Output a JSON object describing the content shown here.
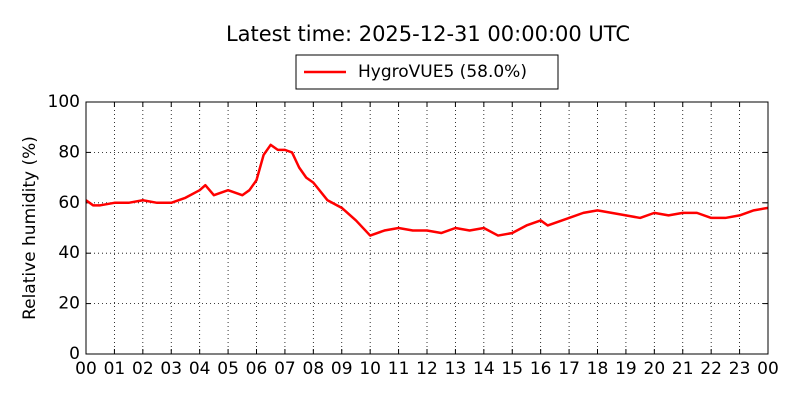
{
  "chart_data": {
    "type": "line",
    "title": "Latest time: 2025-12-31 00:00:00 UTC",
    "y_label": "Relative humidity (%)",
    "x": [
      0,
      0.25,
      0.5,
      1,
      1.5,
      2,
      2.5,
      3,
      3.5,
      4,
      4.2,
      4.5,
      5,
      5.5,
      5.75,
      6,
      6.25,
      6.5,
      6.75,
      7,
      7.25,
      7.5,
      7.75,
      8,
      8.5,
      9,
      9.5,
      10,
      10.5,
      11,
      11.5,
      12,
      12.5,
      13,
      13.5,
      14,
      14.5,
      15,
      15.5,
      16,
      16.25,
      16.5,
      17,
      17.5,
      18,
      18.5,
      19,
      19.5,
      20,
      20.5,
      21,
      21.5,
      22,
      22.5,
      23,
      23.5,
      24
    ],
    "series": [
      {
        "name": "HygroVUE5 (58.0%)",
        "color": "#ff0000",
        "values": [
          61,
          59,
          59,
          60,
          60,
          61,
          60,
          60,
          62,
          65,
          67,
          63,
          65,
          63,
          65,
          69,
          79,
          83,
          81,
          81,
          80,
          74,
          70,
          68,
          61,
          58,
          53,
          47,
          49,
          50,
          49,
          49,
          48,
          50,
          49,
          50,
          47,
          48,
          51,
          53,
          51,
          52,
          54,
          56,
          57,
          56,
          55,
          54,
          56,
          55,
          56,
          56,
          54,
          54,
          55,
          57,
          58
        ]
      }
    ],
    "xlim": [
      0,
      24
    ],
    "xticks": [
      {
        "value": 0,
        "label": "00"
      },
      {
        "value": 1,
        "label": "01"
      },
      {
        "value": 2,
        "label": "02"
      },
      {
        "value": 3,
        "label": "03"
      },
      {
        "value": 4,
        "label": "04"
      },
      {
        "value": 5,
        "label": "05"
      },
      {
        "value": 6,
        "label": "06"
      },
      {
        "value": 7,
        "label": "07"
      },
      {
        "value": 8,
        "label": "08"
      },
      {
        "value": 9,
        "label": "09"
      },
      {
        "value": 10,
        "label": "10"
      },
      {
        "value": 11,
        "label": "11"
      },
      {
        "value": 12,
        "label": "12"
      },
      {
        "value": 13,
        "label": "13"
      },
      {
        "value": 14,
        "label": "14"
      },
      {
        "value": 15,
        "label": "15"
      },
      {
        "value": 16,
        "label": "16"
      },
      {
        "value": 17,
        "label": "17"
      },
      {
        "value": 18,
        "label": "18"
      },
      {
        "value": 19,
        "label": "19"
      },
      {
        "value": 20,
        "label": "20"
      },
      {
        "value": 21,
        "label": "21"
      },
      {
        "value": 22,
        "label": "22"
      },
      {
        "value": 23,
        "label": "23"
      },
      {
        "value": 24,
        "label": "00"
      }
    ],
    "ylim": [
      0,
      100
    ],
    "yticks": [
      0,
      20,
      40,
      60,
      80,
      100
    ],
    "grid": true
  }
}
